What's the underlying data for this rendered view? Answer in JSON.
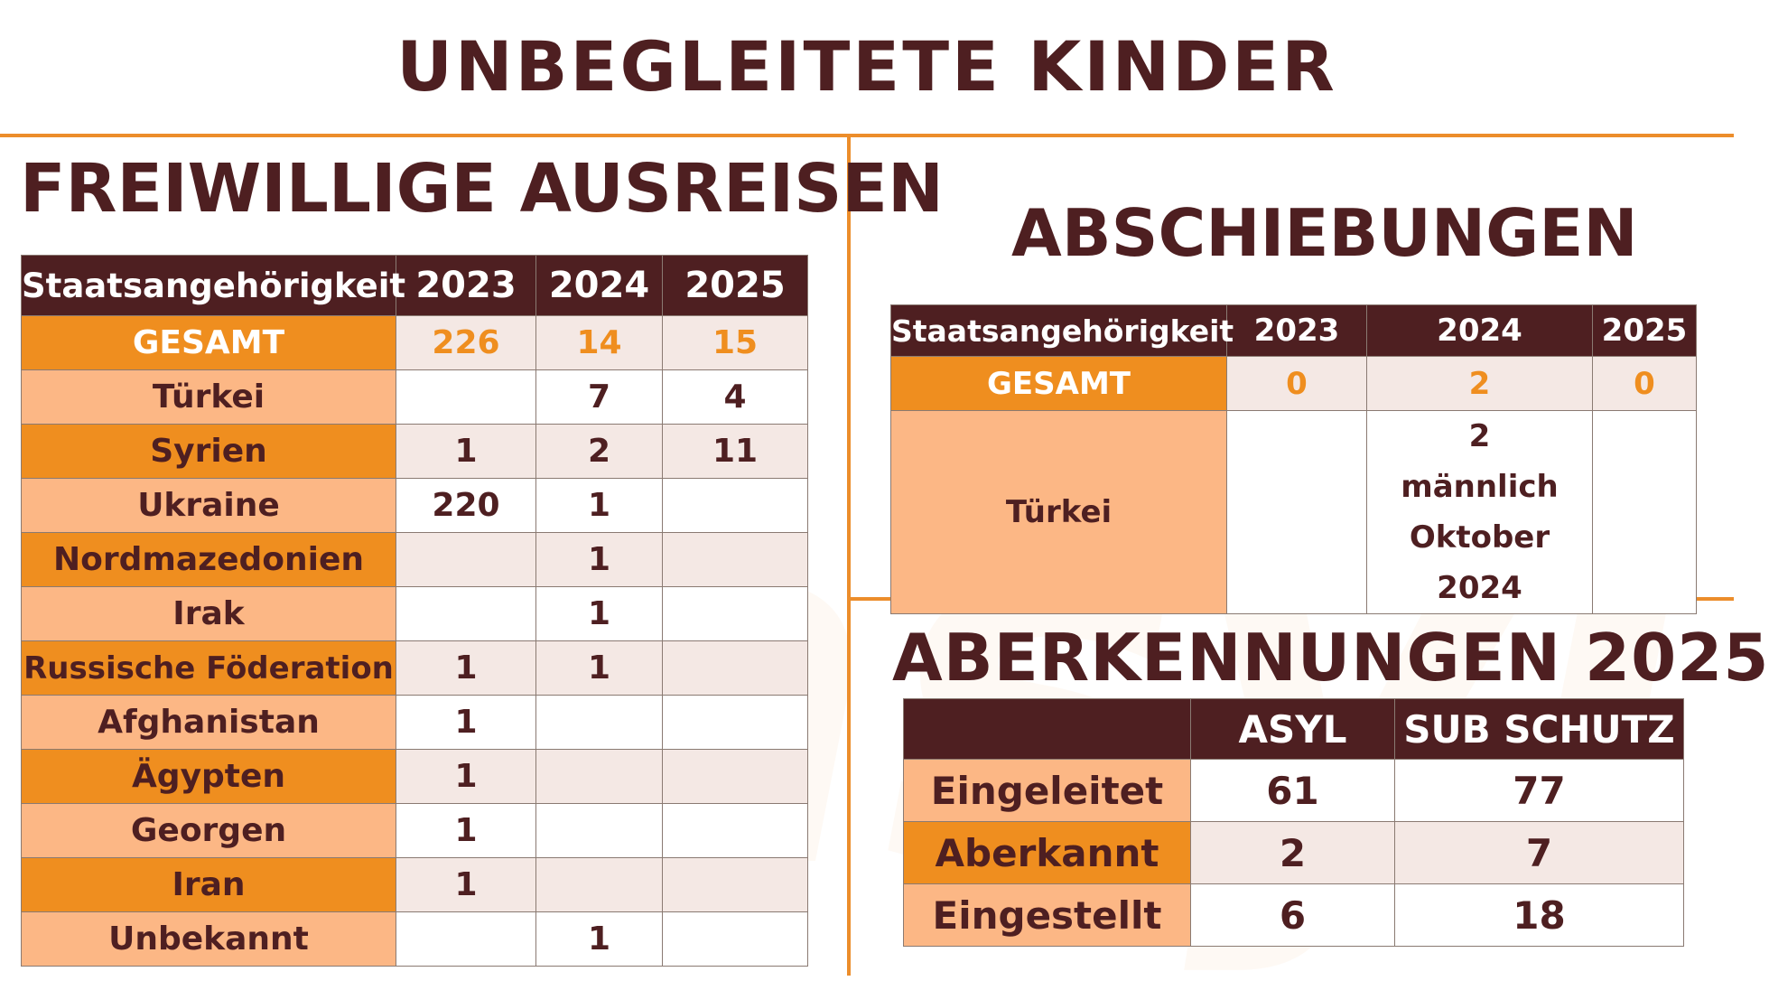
{
  "title": "UNBEGLEITETE KINDER",
  "watermark": "asyl",
  "freiwillige_ausreisen": {
    "heading": "FREIWILLIGE AUSREISEN",
    "headers": [
      "Staatsangehörigkeit",
      "2023",
      "2024",
      "2025"
    ],
    "total": {
      "label": "GESAMT",
      "values": [
        "226",
        "14",
        "15"
      ]
    },
    "rows": [
      {
        "label": "Türkei",
        "values": [
          "",
          "7",
          "4"
        ]
      },
      {
        "label": "Syrien",
        "values": [
          "1",
          "2",
          "11"
        ]
      },
      {
        "label": "Ukraine",
        "values": [
          "220",
          "1",
          ""
        ]
      },
      {
        "label": "Nordmazedonien",
        "values": [
          "",
          "1",
          ""
        ]
      },
      {
        "label": "Irak",
        "values": [
          "",
          "1",
          ""
        ]
      },
      {
        "label": "Russische Föderation",
        "values": [
          "1",
          "1",
          ""
        ]
      },
      {
        "label": "Afghanistan",
        "values": [
          "1",
          "",
          ""
        ]
      },
      {
        "label": "Ägypten",
        "values": [
          "1",
          "",
          ""
        ]
      },
      {
        "label": "Georgen",
        "values": [
          "1",
          "",
          ""
        ]
      },
      {
        "label": "Iran",
        "values": [
          "1",
          "",
          ""
        ]
      },
      {
        "label": "Unbekannt",
        "values": [
          "",
          "1",
          ""
        ]
      }
    ]
  },
  "abschiebungen": {
    "heading": "ABSCHIEBUNGEN",
    "headers": [
      "Staatsangehörigkeit",
      "2023",
      "2024",
      "2025"
    ],
    "total": {
      "label": "GESAMT",
      "values": [
        "0",
        "2",
        "0"
      ]
    },
    "rows": [
      {
        "label": "Türkei",
        "values": [
          "",
          "2\nmännlich\nOktober 2024",
          ""
        ]
      }
    ]
  },
  "aberkennungen": {
    "heading": "ABERKENNUNGEN 2025",
    "headers": [
      "",
      "ASYL",
      "SUB SCHUTZ"
    ],
    "rows": [
      {
        "label": "Eingeleitet",
        "values": [
          "61",
          "77"
        ]
      },
      {
        "label": "Aberkannt",
        "values": [
          "2",
          "7"
        ]
      },
      {
        "label": "Eingestellt",
        "values": [
          "6",
          "18"
        ]
      }
    ]
  },
  "colors": {
    "dark_brown": "#4e1f21",
    "orange": "#ef8e1f",
    "peach": "#fcb785",
    "tint": "#f4e8e4",
    "line": "#ec8d2b"
  }
}
